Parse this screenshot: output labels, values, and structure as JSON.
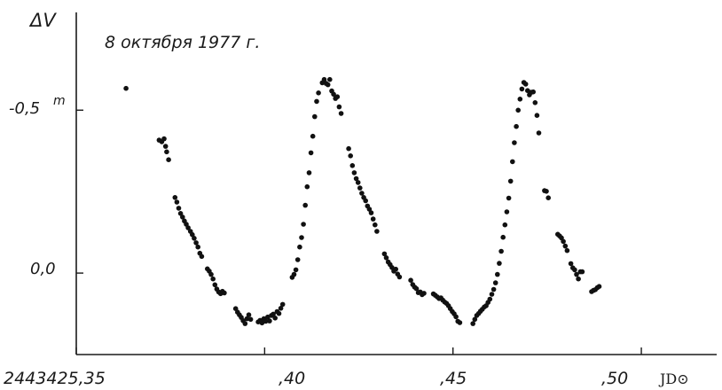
{
  "chart_data": {
    "type": "scatter",
    "title": "8 октября 1977 г.",
    "ylabel": "ΔV",
    "y_unit": "m",
    "xlabel": "JD⊙",
    "x_origin_label": "2443425,35",
    "x_tick_labels": [
      ",40",
      ",45",
      ",50"
    ],
    "y_tick_labels": [
      "-0,5",
      "0,0"
    ],
    "x_ticks": [
      0.35,
      0.4,
      0.45,
      0.5
    ],
    "y_ticks": [
      -0.5,
      0.0
    ],
    "xlim": [
      0.35,
      0.52
    ],
    "ylim": [
      0.25,
      -0.8
    ],
    "y_inverted": true,
    "grid": false,
    "color": "#111111",
    "series": [
      {
        "points": [
          [
            0.3632,
            -0.567
          ],
          [
            0.372,
            -0.408
          ],
          [
            0.3727,
            -0.403
          ],
          [
            0.3733,
            -0.412
          ],
          [
            0.3737,
            -0.389
          ],
          [
            0.374,
            -0.372
          ],
          [
            0.3745,
            -0.348
          ],
          [
            0.3762,
            -0.232
          ],
          [
            0.3767,
            -0.218
          ],
          [
            0.3772,
            -0.199
          ],
          [
            0.3777,
            -0.183
          ],
          [
            0.3782,
            -0.172
          ],
          [
            0.3787,
            -0.16
          ],
          [
            0.3792,
            -0.15
          ],
          [
            0.3797,
            -0.139
          ],
          [
            0.3803,
            -0.128
          ],
          [
            0.3808,
            -0.118
          ],
          [
            0.3813,
            -0.107
          ],
          [
            0.3818,
            -0.093
          ],
          [
            0.3823,
            -0.08
          ],
          [
            0.3828,
            -0.061
          ],
          [
            0.3833,
            -0.051
          ],
          [
            0.3848,
            -0.013
          ],
          [
            0.3853,
            -0.006
          ],
          [
            0.3858,
            0.004
          ],
          [
            0.3863,
            0.018
          ],
          [
            0.3868,
            0.036
          ],
          [
            0.3873,
            0.049
          ],
          [
            0.3878,
            0.058
          ],
          [
            0.3883,
            0.063
          ],
          [
            0.3888,
            0.056
          ],
          [
            0.3893,
            0.061
          ],
          [
            0.3923,
            0.109
          ],
          [
            0.3928,
            0.12
          ],
          [
            0.3933,
            0.128
          ],
          [
            0.3938,
            0.136
          ],
          [
            0.3943,
            0.146
          ],
          [
            0.3948,
            0.155
          ],
          [
            0.3953,
            0.14
          ],
          [
            0.3958,
            0.128
          ],
          [
            0.3963,
            0.142
          ],
          [
            0.3983,
            0.15
          ],
          [
            0.3988,
            0.145
          ],
          [
            0.3993,
            0.153
          ],
          [
            0.3998,
            0.14
          ],
          [
            0.4003,
            0.148
          ],
          [
            0.4008,
            0.135
          ],
          [
            0.4013,
            0.147
          ],
          [
            0.4018,
            0.13
          ],
          [
            0.4023,
            0.126
          ],
          [
            0.4028,
            0.138
          ],
          [
            0.4033,
            0.118
          ],
          [
            0.4038,
            0.124
          ],
          [
            0.4043,
            0.108
          ],
          [
            0.4048,
            0.096
          ],
          [
            0.4073,
            0.013
          ],
          [
            0.4078,
            0.004
          ],
          [
            0.4083,
            -0.01
          ],
          [
            0.4088,
            -0.041
          ],
          [
            0.4093,
            -0.08
          ],
          [
            0.4098,
            -0.109
          ],
          [
            0.4103,
            -0.15
          ],
          [
            0.4108,
            -0.208
          ],
          [
            0.4113,
            -0.265
          ],
          [
            0.4118,
            -0.308
          ],
          [
            0.4123,
            -0.369
          ],
          [
            0.4128,
            -0.42
          ],
          [
            0.4133,
            -0.48
          ],
          [
            0.4138,
            -0.527
          ],
          [
            0.4143,
            -0.553
          ],
          [
            0.4153,
            -0.584
          ],
          [
            0.4158,
            -0.594
          ],
          [
            0.4163,
            -0.582
          ],
          [
            0.4168,
            -0.578
          ],
          [
            0.4173,
            -0.594
          ],
          [
            0.4178,
            -0.559
          ],
          [
            0.4183,
            -0.549
          ],
          [
            0.4188,
            -0.536
          ],
          [
            0.4193,
            -0.541
          ],
          [
            0.4198,
            -0.51
          ],
          [
            0.4203,
            -0.49
          ],
          [
            0.4223,
            -0.382
          ],
          [
            0.4228,
            -0.36
          ],
          [
            0.4233,
            -0.33
          ],
          [
            0.4238,
            -0.308
          ],
          [
            0.4243,
            -0.29
          ],
          [
            0.4248,
            -0.278
          ],
          [
            0.4253,
            -0.261
          ],
          [
            0.4258,
            -0.245
          ],
          [
            0.4263,
            -0.232
          ],
          [
            0.4268,
            -0.222
          ],
          [
            0.4273,
            -0.206
          ],
          [
            0.4278,
            -0.196
          ],
          [
            0.4283,
            -0.185
          ],
          [
            0.4288,
            -0.166
          ],
          [
            0.4293,
            -0.148
          ],
          [
            0.4298,
            -0.128
          ],
          [
            0.4318,
            -0.059
          ],
          [
            0.4323,
            -0.047
          ],
          [
            0.4328,
            -0.034
          ],
          [
            0.4333,
            -0.026
          ],
          [
            0.4338,
            -0.017
          ],
          [
            0.4343,
            -0.006
          ],
          [
            0.4348,
            -0.012
          ],
          [
            0.4353,
            0.003
          ],
          [
            0.4358,
            0.012
          ],
          [
            0.4388,
            0.022
          ],
          [
            0.4393,
            0.035
          ],
          [
            0.4398,
            0.043
          ],
          [
            0.4403,
            0.048
          ],
          [
            0.4408,
            0.06
          ],
          [
            0.4413,
            0.058
          ],
          [
            0.4418,
            0.066
          ],
          [
            0.4423,
            0.062
          ],
          [
            0.4448,
            0.064
          ],
          [
            0.4453,
            0.068
          ],
          [
            0.4458,
            0.073
          ],
          [
            0.4463,
            0.078
          ],
          [
            0.4468,
            0.076
          ],
          [
            0.4473,
            0.083
          ],
          [
            0.4478,
            0.089
          ],
          [
            0.4483,
            0.093
          ],
          [
            0.4488,
            0.1
          ],
          [
            0.4493,
            0.109
          ],
          [
            0.4498,
            0.118
          ],
          [
            0.4503,
            0.125
          ],
          [
            0.4508,
            0.134
          ],
          [
            0.4513,
            0.148
          ],
          [
            0.4518,
            0.152
          ],
          [
            0.4553,
            0.155
          ],
          [
            0.4558,
            0.142
          ],
          [
            0.4563,
            0.13
          ],
          [
            0.4568,
            0.124
          ],
          [
            0.4573,
            0.117
          ],
          [
            0.4578,
            0.111
          ],
          [
            0.4583,
            0.104
          ],
          [
            0.4588,
            0.1
          ],
          [
            0.4593,
            0.09
          ],
          [
            0.4598,
            0.08
          ],
          [
            0.4603,
            0.065
          ],
          [
            0.4608,
            0.05
          ],
          [
            0.4613,
            0.03
          ],
          [
            0.4618,
            0.004
          ],
          [
            0.4623,
            -0.03
          ],
          [
            0.4628,
            -0.067
          ],
          [
            0.4633,
            -0.11
          ],
          [
            0.4638,
            -0.148
          ],
          [
            0.4643,
            -0.188
          ],
          [
            0.4648,
            -0.23
          ],
          [
            0.4653,
            -0.282
          ],
          [
            0.4658,
            -0.342
          ],
          [
            0.4663,
            -0.4
          ],
          [
            0.4668,
            -0.45
          ],
          [
            0.4673,
            -0.5
          ],
          [
            0.4678,
            -0.534
          ],
          [
            0.4683,
            -0.565
          ],
          [
            0.4688,
            -0.585
          ],
          [
            0.4693,
            -0.58
          ],
          [
            0.4698,
            -0.56
          ],
          [
            0.4703,
            -0.547
          ],
          [
            0.4708,
            -0.555
          ],
          [
            0.4713,
            -0.556
          ],
          [
            0.4718,
            -0.523
          ],
          [
            0.4723,
            -0.484
          ],
          [
            0.4728,
            -0.43
          ],
          [
            0.4743,
            -0.253
          ],
          [
            0.4748,
            -0.251
          ],
          [
            0.4753,
            -0.231
          ],
          [
            0.4778,
            -0.119
          ],
          [
            0.4783,
            -0.114
          ],
          [
            0.4788,
            -0.108
          ],
          [
            0.4793,
            -0.097
          ],
          [
            0.4798,
            -0.083
          ],
          [
            0.4803,
            -0.069
          ],
          [
            0.4813,
            -0.029
          ],
          [
            0.4818,
            -0.016
          ],
          [
            0.4823,
            -0.01
          ],
          [
            0.4828,
            0.004
          ],
          [
            0.4833,
            0.018
          ],
          [
            0.4838,
            -0.004
          ],
          [
            0.4843,
            -0.004
          ],
          [
            0.4868,
            0.057
          ],
          [
            0.4873,
            0.053
          ],
          [
            0.4878,
            0.051
          ],
          [
            0.4883,
            0.045
          ],
          [
            0.4888,
            0.041
          ]
        ]
      }
    ]
  }
}
